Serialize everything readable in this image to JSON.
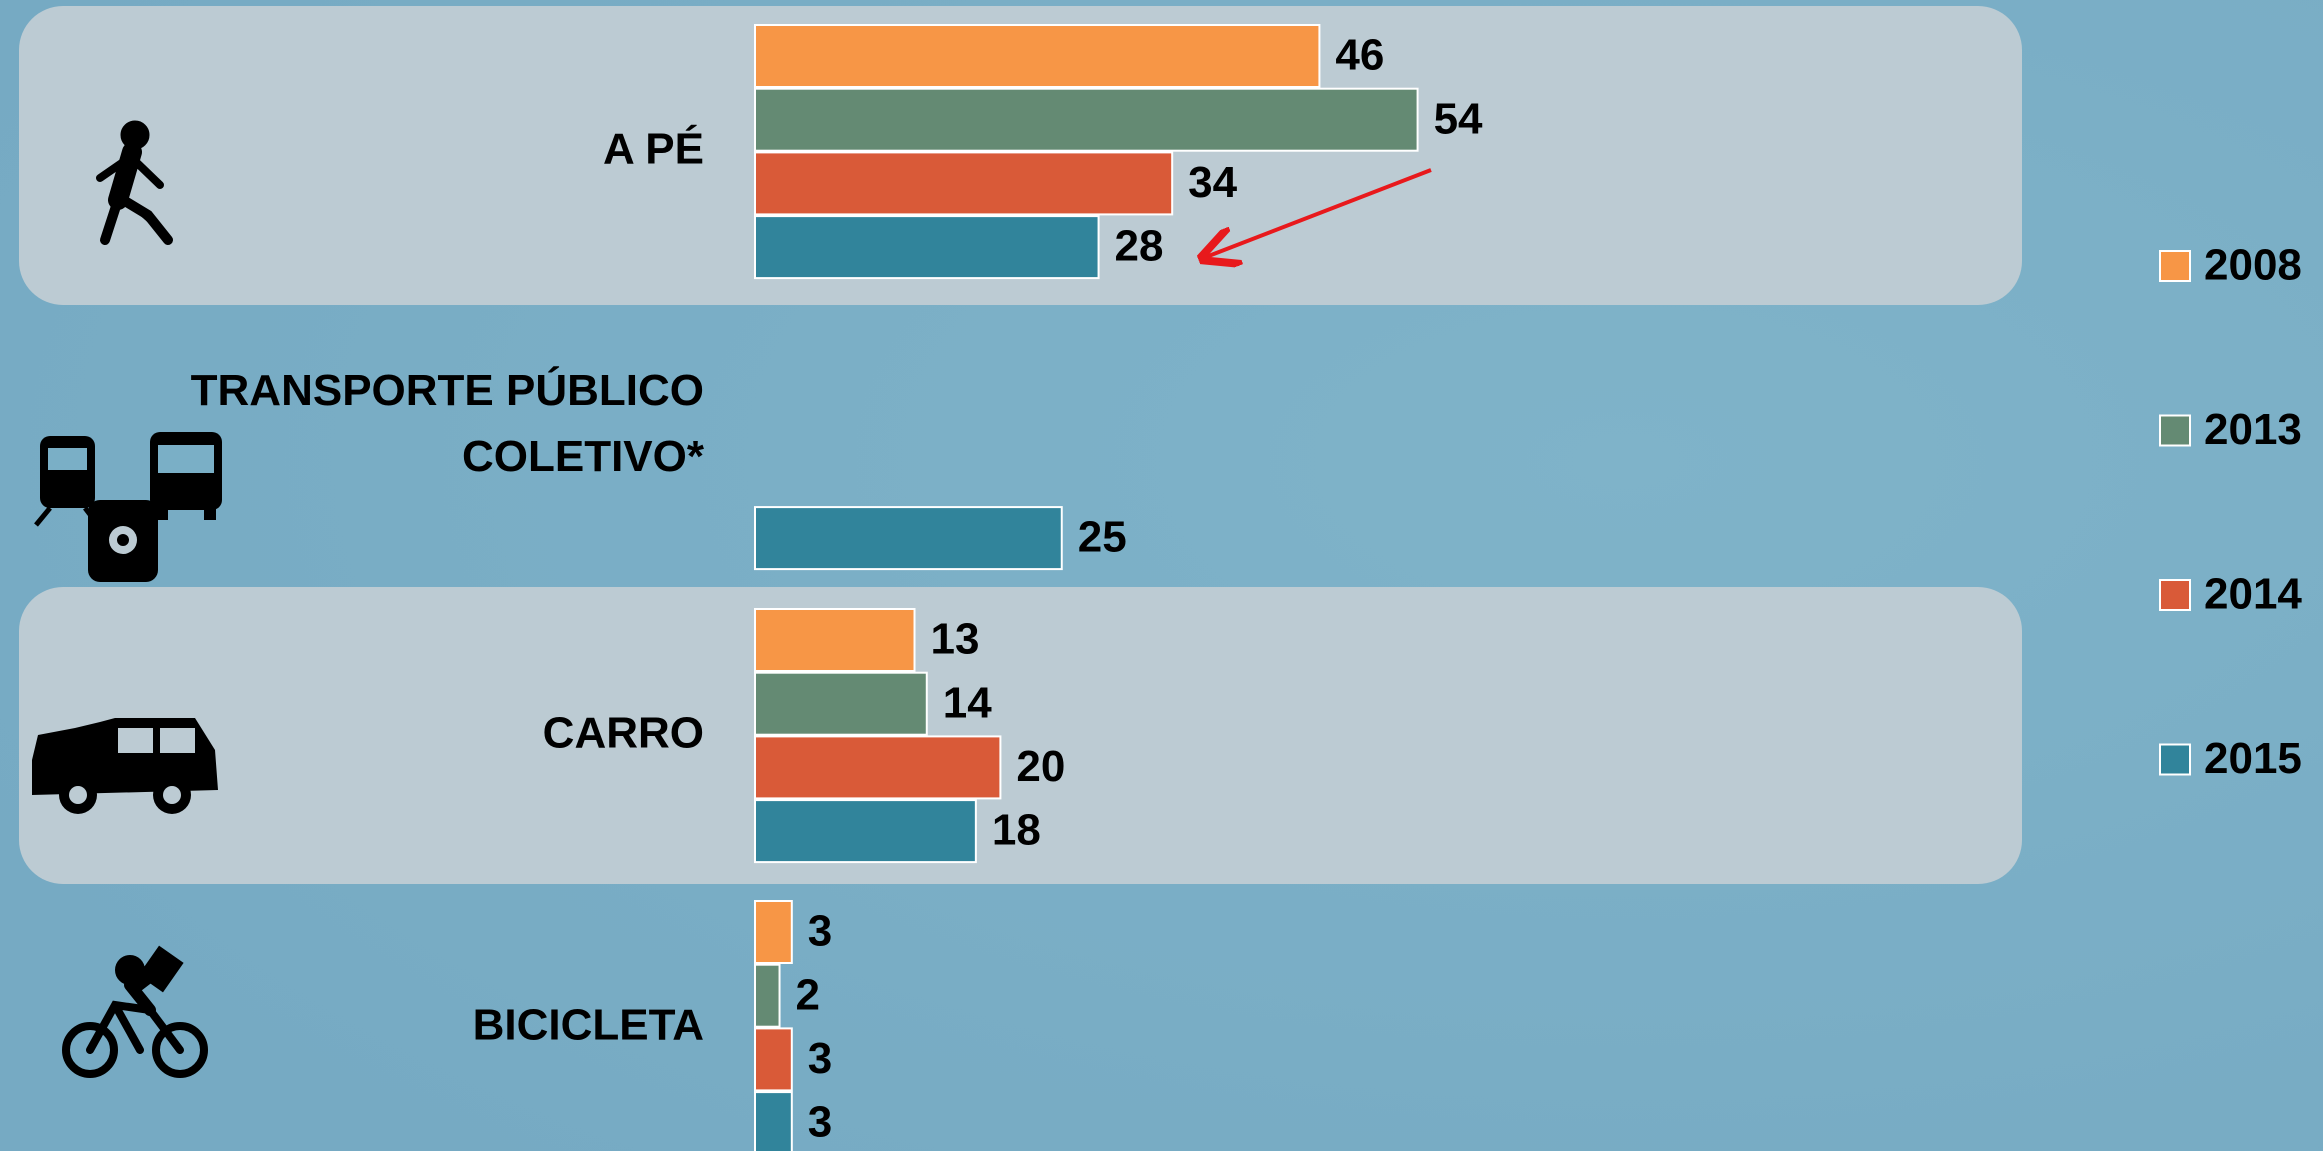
{
  "chart_data": {
    "type": "bar",
    "orientation": "horizontal",
    "categories": [
      "A PÉ",
      "TRANSPORTE PÚBLICO COLETIVO*",
      "CARRO",
      "BICICLETA"
    ],
    "series": [
      {
        "name": "2008",
        "color": "#f79646",
        "values": [
          46,
          null,
          13,
          3
        ]
      },
      {
        "name": "2013",
        "color": "#648a73",
        "values": [
          54,
          null,
          14,
          2
        ]
      },
      {
        "name": "2014",
        "color": "#d95a38",
        "values": [
          34,
          null,
          20,
          3
        ]
      },
      {
        "name": "2015",
        "color": "#31849b",
        "values": [
          28,
          25,
          18,
          3
        ]
      }
    ],
    "xlim": [
      0,
      100
    ],
    "legend": "right"
  }
}
